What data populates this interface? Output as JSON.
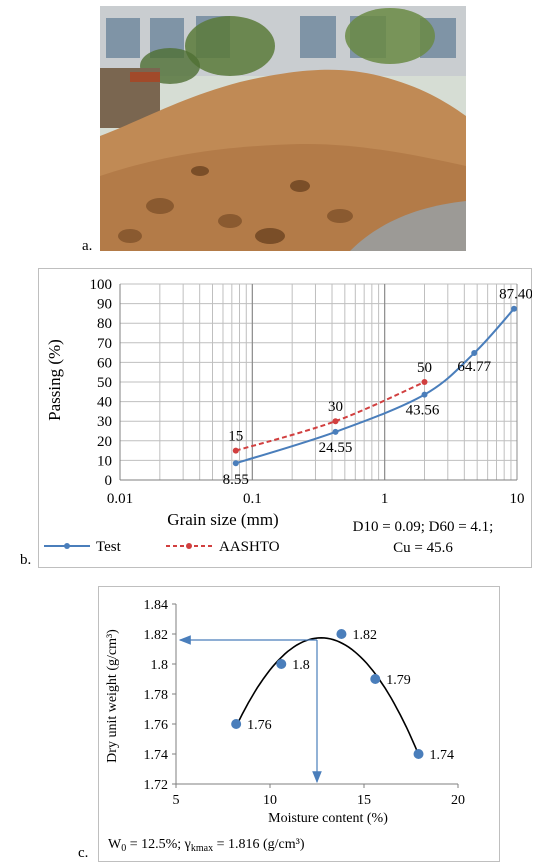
{
  "panels": {
    "a": {
      "label": "a."
    },
    "b": {
      "label": "b."
    },
    "c": {
      "label": "c."
    }
  },
  "photo": {
    "subject": "soil pile photograph",
    "colors": {
      "sky": "#d8e0d8",
      "soil": "#c08a55",
      "soil_dark": "#8a5a30",
      "foliage": "#5a7a3a",
      "building": "#c9cdd0"
    }
  },
  "chart_data": [
    {
      "type": "line",
      "x_scale": "log",
      "xlim": [
        0.01,
        10
      ],
      "ylim": [
        0,
        100
      ],
      "x_ticks": [
        "0.01",
        "0.1",
        "1",
        "10"
      ],
      "x_tick_values": [
        0.01,
        0.1,
        1,
        10
      ],
      "y_ticks": [
        "0",
        "10",
        "20",
        "30",
        "40",
        "50",
        "60",
        "70",
        "80",
        "90",
        "100"
      ],
      "xlabel": "Grain size (mm)",
      "ylabel": "Passing (%)",
      "grid": true,
      "legend_position": "bottom",
      "series": [
        {
          "name": "Test",
          "color": "#4a7ebb",
          "style": "solid",
          "x": [
            0.075,
            0.425,
            2.0,
            4.75,
            9.5
          ],
          "y": [
            8.55,
            24.55,
            43.56,
            64.77,
            87.4
          ],
          "labels": [
            "8.55",
            "24.55",
            "43.56",
            "64.77",
            "87.40"
          ]
        },
        {
          "name": "AASHTO",
          "color": "#d13f3f",
          "style": "dashed",
          "x": [
            0.075,
            0.425,
            2.0
          ],
          "y": [
            15,
            30,
            50
          ],
          "labels": [
            "15",
            "30",
            "50"
          ]
        }
      ],
      "annotation": {
        "line1": "D10 = 0.09; D60 = 4.1;",
        "line2": "Cu = 45.6"
      }
    },
    {
      "type": "scatter",
      "xlim": [
        5,
        20
      ],
      "ylim": [
        1.72,
        1.84
      ],
      "x_ticks": [
        "5",
        "10",
        "15",
        "20"
      ],
      "x_tick_values": [
        5,
        10,
        15,
        20
      ],
      "y_ticks": [
        "1.72",
        "1.74",
        "1.76",
        "1.78",
        "1.8",
        "1.82",
        "1.84"
      ],
      "y_tick_values": [
        1.72,
        1.74,
        1.76,
        1.78,
        1.8,
        1.82,
        1.84
      ],
      "xlabel": "Moisture content (%)",
      "ylabel": "Dry unit weight (g/cm³)",
      "grid": false,
      "point_color": "#4a7ebb",
      "curve_color": "#000000",
      "arrow_color": "#4a7ebb",
      "points": {
        "x": [
          8.2,
          10.6,
          13.8,
          15.6,
          17.9
        ],
        "y": [
          1.76,
          1.8,
          1.82,
          1.79,
          1.74
        ],
        "labels": [
          "1.76",
          "1.8",
          "1.82",
          "1.79",
          "1.74"
        ]
      },
      "optimum": {
        "x": 12.5,
        "y": 1.816
      },
      "annotation": {
        "prefix": "W",
        "sub0": "0",
        "mid": " = 12.5%; γ",
        "sub1": "kmax",
        "suffix": " = 1.816 (g/cm³)"
      }
    }
  ]
}
